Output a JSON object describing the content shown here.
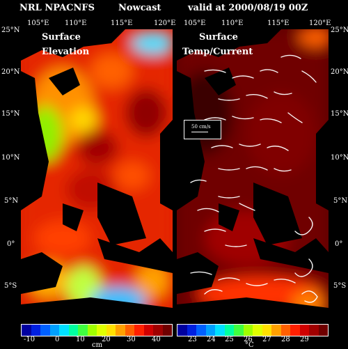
{
  "header": {
    "left": "NRL NPACNFS",
    "middle": "Nowcast",
    "right": "valid at 2000/08/19 00Z"
  },
  "lon_ticks": [
    "105°E",
    "110°E",
    "115°E",
    "120°E"
  ],
  "lat_ticks": [
    "25°N",
    "20°N",
    "15°N",
    "10°N",
    "5°N",
    "0°",
    "5°S"
  ],
  "left_panel": {
    "title_line1": "Surface",
    "title_line2": "Elevation",
    "unit": "cm",
    "colorbar_ticks": [
      "-10",
      "0",
      "10",
      "20",
      "30",
      "40"
    ]
  },
  "right_panel": {
    "title": "Surface",
    "subtitle": "Temp/Current",
    "unit": "°C",
    "vector_label": "50 cm/s",
    "colorbar_ticks": [
      "23",
      "24",
      "25",
      "26",
      "27",
      "28",
      "29"
    ]
  }
}
